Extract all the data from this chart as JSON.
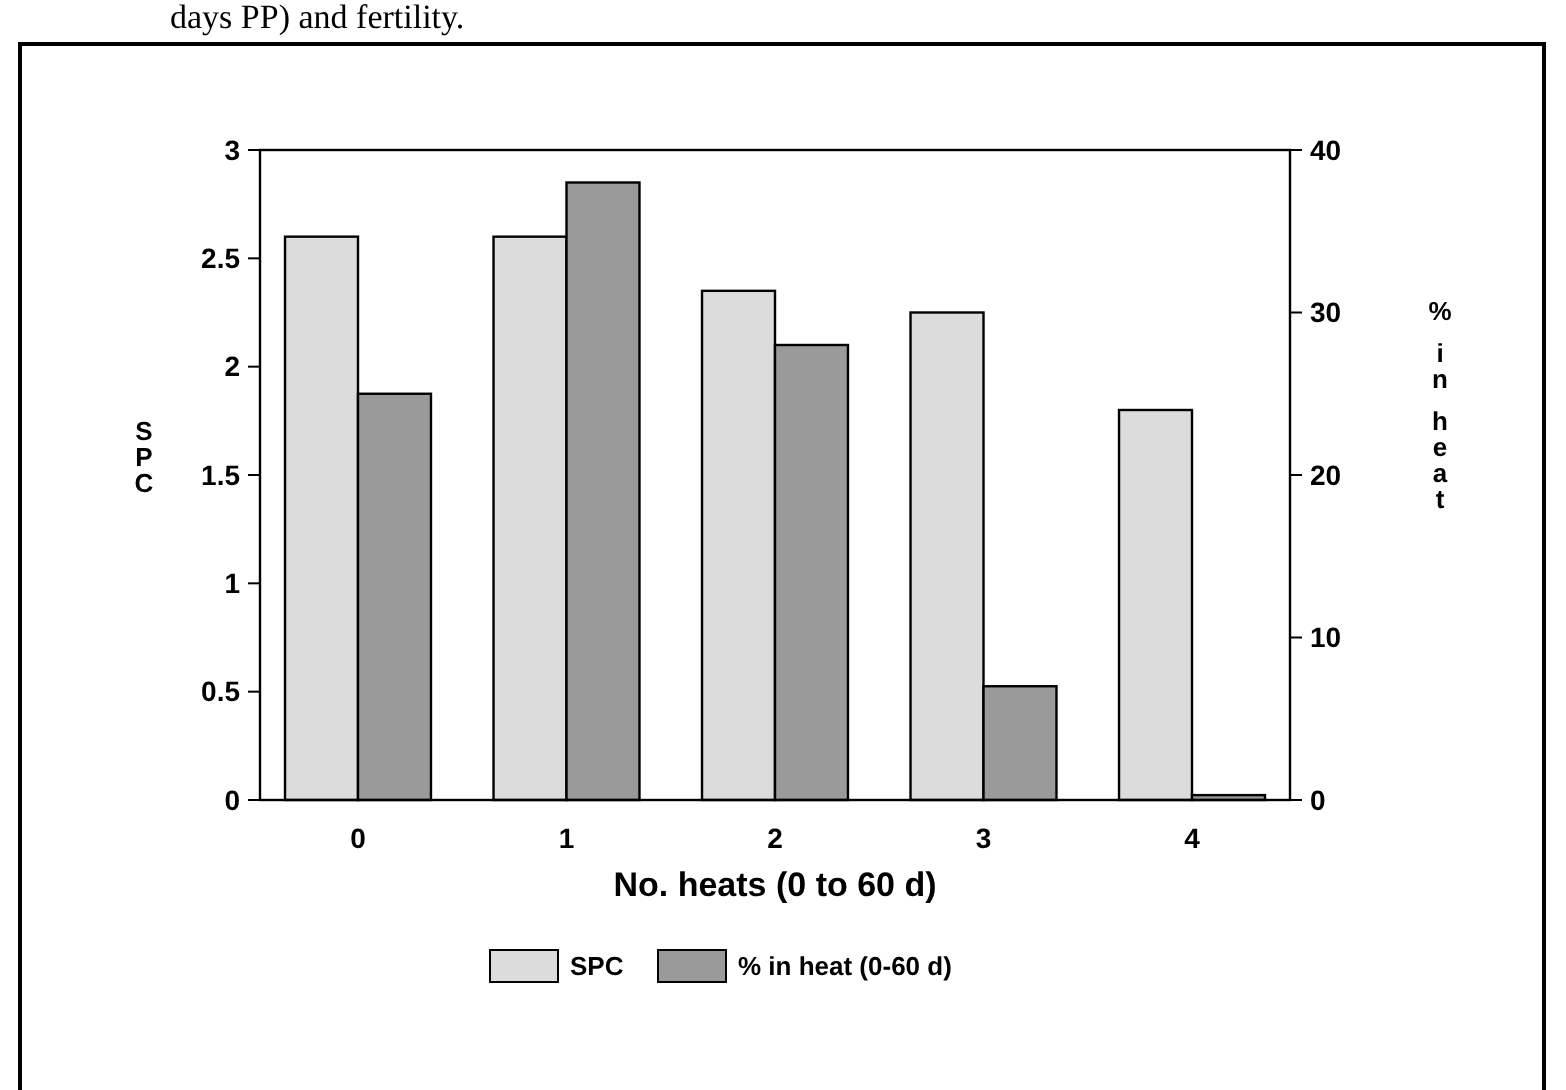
{
  "chart_data": {
    "type": "bar",
    "xlabel": "No. heats (0 to 60 d)",
    "ylabel": "SPC",
    "y2label": "% in heat",
    "annotations": [
      "days PP) and fertility."
    ],
    "categories": [
      "0",
      "1",
      "2",
      "3",
      "4"
    ],
    "series": [
      {
        "name": "SPC",
        "color": "#dcdcdc",
        "values": [
          2.6,
          2.6,
          2.35,
          2.25,
          1.8
        ]
      },
      {
        "name": "% in heat (0-60 d)",
        "color": "#9a9a9a",
        "axis": "y2",
        "values": [
          25,
          38,
          28,
          7,
          0.3
        ]
      }
    ],
    "ylim": [
      0,
      3
    ],
    "yticks": [
      0,
      0.5,
      1,
      1.5,
      2,
      2.5,
      3
    ],
    "y2lim": [
      0,
      40
    ],
    "y2ticks": [
      0,
      10,
      20,
      30,
      40
    ],
    "legend": "bottom",
    "grid": false
  }
}
